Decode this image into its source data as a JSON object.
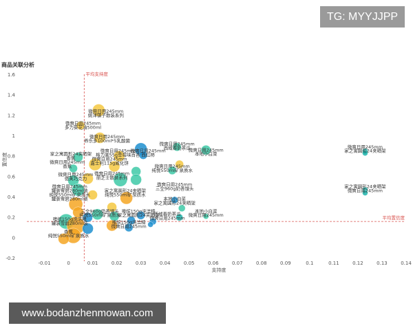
{
  "watermark_top": "TG: MYYJJPP",
  "watermark_bottom": "www.bodanzhenmowan.com",
  "chart_data": {
    "type": "scatter",
    "title": "商品关联分析",
    "xlabel": "支持度",
    "ylabel": "置信度",
    "xlim": [
      -0.015,
      0.14
    ],
    "ylim": [
      -0.23,
      1.63
    ],
    "x_ticks": [
      "-0.01",
      "0",
      "0.01",
      "0.02",
      "0.03",
      "0.04",
      "0.05",
      "0.06",
      "0.07",
      "0.08",
      "0.09",
      "0.1",
      "0.11",
      "0.12",
      "0.13",
      "0.14"
    ],
    "y_ticks": [
      "-0.2",
      "0",
      "0.2",
      "0.4",
      "0.6",
      "0.8",
      "1",
      "1.2",
      "1.4",
      "1.6"
    ],
    "x_tick_values": [
      -0.01,
      0,
      0.01,
      0.02,
      0.03,
      0.04,
      0.05,
      0.06,
      0.07,
      0.08,
      0.09,
      0.1,
      0.11,
      0.12,
      0.13,
      0.14
    ],
    "y_tick_values": [
      -0.2,
      0,
      0.2,
      0.4,
      0.6,
      0.8,
      1,
      1.2,
      1.4,
      1.6
    ],
    "grid": false,
    "reference_lines": {
      "support": {
        "value": 0.0065,
        "label": "平均支持度"
      },
      "confidence": {
        "value": 0.16,
        "label": "平均置信度"
      }
    },
    "colors": {
      "orange": "#f5a623",
      "yellow": "#f5c842",
      "green": "#3ec9a7",
      "teal": "#1fb5ad",
      "blue": "#1f8fcf",
      "red": "#d9534f"
    },
    "points": [
      {
        "x": 0.0125,
        "y": 1.25,
        "r": 9,
        "color": "#f5c842"
      },
      {
        "x": 0.005,
        "y": 1.1,
        "r": 6,
        "color": "#f5c842"
      },
      {
        "x": 0.013,
        "y": 0.98,
        "r": 8,
        "color": "#f5c842"
      },
      {
        "x": 0.03,
        "y": 0.87,
        "r": 9,
        "color": "#1f8fcf"
      },
      {
        "x": 0.021,
        "y": 0.8,
        "r": 8,
        "color": "#f5c842"
      },
      {
        "x": 0.031,
        "y": 0.81,
        "r": 6,
        "color": "#1f8fcf"
      },
      {
        "x": 0.045,
        "y": 0.89,
        "r": 6,
        "color": "#3ec9a7"
      },
      {
        "x": 0.057,
        "y": 0.86,
        "r": 7,
        "color": "#3ec9a7"
      },
      {
        "x": 0.004,
        "y": 0.79,
        "r": 7,
        "color": "#3ec9a7"
      },
      {
        "x": 0.011,
        "y": 0.72,
        "r": 9,
        "color": "#f5c842"
      },
      {
        "x": 0.019,
        "y": 0.7,
        "r": 8,
        "color": "#f5c842"
      },
      {
        "x": 0.002,
        "y": 0.68,
        "r": 6,
        "color": "#3ec9a7"
      },
      {
        "x": 0.028,
        "y": 0.65,
        "r": 7,
        "color": "#3ec9a7"
      },
      {
        "x": 0.046,
        "y": 0.72,
        "r": 6,
        "color": "#f5c842"
      },
      {
        "x": 0.043,
        "y": 0.66,
        "r": 6,
        "color": "#3ec9a7"
      },
      {
        "x": 0.0215,
        "y": 0.57,
        "r": 10,
        "color": "#3ec9a7"
      },
      {
        "x": 0.008,
        "y": 0.58,
        "r": 8,
        "color": "#f5c842"
      },
      {
        "x": 0.002,
        "y": 0.56,
        "r": 8,
        "color": "#3ec9a7"
      },
      {
        "x": 0.028,
        "y": 0.57,
        "r": 8,
        "color": "#3ec9a7"
      },
      {
        "x": 0.004,
        "y": 0.47,
        "r": 9,
        "color": "#3ec9a7"
      },
      {
        "x": 0.01,
        "y": 0.42,
        "r": 7,
        "color": "#f5c842"
      },
      {
        "x": 0.024,
        "y": 0.39,
        "r": 9,
        "color": "#f5a623"
      },
      {
        "x": 0.003,
        "y": 0.33,
        "r": 10,
        "color": "#f5a623"
      },
      {
        "x": 0.018,
        "y": 0.3,
        "r": 7,
        "color": "#f5c842"
      },
      {
        "x": 0.047,
        "y": 0.29,
        "r": 5,
        "color": "#3ec9a7"
      },
      {
        "x": 0.044,
        "y": 0.37,
        "r": 5,
        "color": "#1f8fcf"
      },
      {
        "x": 0.012,
        "y": 0.23,
        "r": 8,
        "color": "#3ec9a7"
      },
      {
        "x": 0.019,
        "y": 0.21,
        "r": 7,
        "color": "#3ec9a7"
      },
      {
        "x": 0.03,
        "y": 0.22,
        "r": 6,
        "color": "#1f8fcf"
      },
      {
        "x": 0.046,
        "y": 0.2,
        "r": 5,
        "color": "#1fb5ad"
      },
      {
        "x": 0.057,
        "y": 0.21,
        "r": 4,
        "color": "#3ec9a7"
      },
      {
        "x": 0.008,
        "y": 0.2,
        "r": 7,
        "color": "#1f8fcf"
      },
      {
        "x": 0.026,
        "y": 0.17,
        "r": 6,
        "color": "#1f8fcf"
      },
      {
        "x": 0.035,
        "y": 0.16,
        "r": 5,
        "color": "#1f8fcf"
      },
      {
        "x": 0.018,
        "y": 0.12,
        "r": 8,
        "color": "#f5a623"
      },
      {
        "x": 0.025,
        "y": 0.1,
        "r": 6,
        "color": "#1f8fcf"
      },
      {
        "x": 0.034,
        "y": 0.13,
        "r": 4,
        "color": "#1f8fcf"
      },
      {
        "x": -0.001,
        "y": 0.16,
        "r": 11,
        "color": "#3ec9a7"
      },
      {
        "x": 0.003,
        "y": 0.12,
        "r": 13,
        "color": "#f5a623"
      },
      {
        "x": 0.008,
        "y": 0.09,
        "r": 8,
        "color": "#1f8fcf"
      },
      {
        "x": 0.002,
        "y": 0.02,
        "r": 11,
        "color": "#f5a623"
      },
      {
        "x": -0.002,
        "y": -0.01,
        "r": 8,
        "color": "#f5a623"
      },
      {
        "x": 0.004,
        "y": 0.25,
        "r": 8,
        "color": "#f5a623"
      },
      {
        "x": 0.123,
        "y": 0.85,
        "r": 4,
        "color": "#1fb5ad"
      },
      {
        "x": 0.123,
        "y": 0.83,
        "r": 4,
        "color": "#1fb5ad"
      },
      {
        "x": 0.123,
        "y": 0.47,
        "r": 4,
        "color": "#1fb5ad"
      },
      {
        "x": 0.123,
        "y": 0.44,
        "r": 4,
        "color": "#1fb5ad"
      }
    ],
    "labels": [
      {
        "x": 0.0155,
        "y": 1.24,
        "text": "微爽日用245mm",
        "anchor": "middle"
      },
      {
        "x": 0.0155,
        "y": 1.2,
        "text": "姚津镇子散装系列",
        "anchor": "middle"
      },
      {
        "x": 0.006,
        "y": 1.12,
        "text": "微爽日用245mm",
        "anchor": "middle"
      },
      {
        "x": 0.006,
        "y": 1.08,
        "text": "多力葵花油500ml",
        "anchor": "middle"
      },
      {
        "x": 0.016,
        "y": 0.99,
        "text": "微爽日用245mm",
        "anchor": "middle"
      },
      {
        "x": 0.016,
        "y": 0.95,
        "text": "养乐多100ml*5乳酸菌",
        "anchor": "middle"
      },
      {
        "x": 0.045,
        "y": 0.92,
        "text": "微爽日用245mm",
        "anchor": "middle"
      },
      {
        "x": 0.045,
        "y": 0.88,
        "text": "西域春奶茶瓜",
        "anchor": "middle"
      },
      {
        "x": 0.0205,
        "y": 0.85,
        "text": "微爽日用245mm",
        "anchor": "middle"
      },
      {
        "x": 0.0205,
        "y": 0.81,
        "text": "格力美55g草莓味百香",
        "anchor": "middle"
      },
      {
        "x": 0.033,
        "y": 0.85,
        "text": "微爽日用245mm",
        "anchor": "middle"
      },
      {
        "x": 0.033,
        "y": 0.81,
        "text": "西红柿",
        "anchor": "middle"
      },
      {
        "x": 0.057,
        "y": 0.86,
        "text": "微爽日用245mm",
        "anchor": "middle"
      },
      {
        "x": 0.057,
        "y": 0.82,
        "text": "本地小白菜",
        "anchor": "middle"
      },
      {
        "x": 0.001,
        "y": 0.82,
        "text": "家之寓圆形24夹晒架",
        "anchor": "middle"
      },
      {
        "x": 0.001,
        "y": 0.78,
        "text": "香蕉",
        "anchor": "middle"
      },
      {
        "x": -0.0005,
        "y": 0.74,
        "text": "微爽日用245mm",
        "anchor": "middle"
      },
      {
        "x": -0.0005,
        "y": 0.7,
        "text": "香蕉",
        "anchor": "middle"
      },
      {
        "x": 0.017,
        "y": 0.77,
        "text": "微爽日用245mm",
        "anchor": "middle"
      },
      {
        "x": 0.017,
        "y": 0.73,
        "text": "嘉士利115g威化饼",
        "anchor": "middle"
      },
      {
        "x": 0.043,
        "y": 0.7,
        "text": "微爽日用245mm",
        "anchor": "middle"
      },
      {
        "x": 0.043,
        "y": 0.66,
        "text": "纯悦550ml矿泉质水",
        "anchor": "middle"
      },
      {
        "x": 0.018,
        "y": 0.63,
        "text": "微爽日用245mm",
        "anchor": "middle"
      },
      {
        "x": 0.018,
        "y": 0.59,
        "text": "丽芝士散装系列",
        "anchor": "middle"
      },
      {
        "x": 0.003,
        "y": 0.62,
        "text": "微爽日用245mm",
        "anchor": "middle"
      },
      {
        "x": 0.003,
        "y": 0.58,
        "text": "德芙巧克力",
        "anchor": "middle"
      },
      {
        "x": 0.044,
        "y": 0.52,
        "text": "微爽日用245mm",
        "anchor": "middle"
      },
      {
        "x": 0.044,
        "y": 0.48,
        "text": "三全960g奶香馒头",
        "anchor": "middle"
      },
      {
        "x": 0.0005,
        "y": 0.5,
        "text": "微爽日用245mm",
        "anchor": "middle"
      },
      {
        "x": 0.0005,
        "y": 0.46,
        "text": "罐装雪碧280ml装",
        "anchor": "middle"
      },
      {
        "x": 0.0235,
        "y": 0.46,
        "text": "家之寓圆形24夹晒架",
        "anchor": "middle"
      },
      {
        "x": 0.0235,
        "y": 0.42,
        "text": "纯悦550ml矿泉质水",
        "anchor": "middle"
      },
      {
        "x": 0.0005,
        "y": 0.42,
        "text": "纯悦550ml矿泉质水",
        "anchor": "middle"
      },
      {
        "x": 0.0005,
        "y": 0.38,
        "text": "罐装雪碧280ml装",
        "anchor": "middle"
      },
      {
        "x": 0.044,
        "y": 0.38,
        "text": "本地小白菜",
        "anchor": "middle"
      },
      {
        "x": 0.044,
        "y": 0.34,
        "text": "家之寓圆形24夹晒架",
        "anchor": "middle"
      },
      {
        "x": 0.013,
        "y": 0.26,
        "text": "三全960g奶香馒头",
        "anchor": "middle"
      },
      {
        "x": 0.013,
        "y": 0.22,
        "text": "纯悦550ml矿泉质水",
        "anchor": "middle"
      },
      {
        "x": 0.029,
        "y": 0.26,
        "text": "噢缤150g洗洁精",
        "anchor": "middle"
      },
      {
        "x": 0.029,
        "y": 0.22,
        "text": "家之寓圆形24夹晒架",
        "anchor": "middle"
      },
      {
        "x": 0.057,
        "y": 0.26,
        "text": "本地小白菜",
        "anchor": "middle"
      },
      {
        "x": 0.057,
        "y": 0.22,
        "text": "微爽日用245mm",
        "anchor": "middle"
      },
      {
        "x": 0.041,
        "y": 0.23,
        "text": "西域春奶茶瓜",
        "anchor": "middle"
      },
      {
        "x": 0.041,
        "y": 0.19,
        "text": "微爽日用245mm",
        "anchor": "middle"
      },
      {
        "x": 0.0005,
        "y": 0.18,
        "text": "噢缤150g洗洁精",
        "anchor": "middle"
      },
      {
        "x": 0.0005,
        "y": 0.14,
        "text": "罐装雪碧280ml装",
        "anchor": "middle"
      },
      {
        "x": 0.025,
        "y": 0.15,
        "text": "噢缤150g洗洁精",
        "anchor": "middle"
      },
      {
        "x": 0.025,
        "y": 0.11,
        "text": "微爽日用245mm",
        "anchor": "middle"
      },
      {
        "x": 0.0,
        "y": 0.06,
        "text": "香蕉",
        "anchor": "middle"
      },
      {
        "x": 0.0,
        "y": 0.02,
        "text": "纯悦550ml矿泉质水",
        "anchor": "middle"
      },
      {
        "x": 0.123,
        "y": 0.89,
        "text": "微爽日用245mm",
        "anchor": "middle"
      },
      {
        "x": 0.123,
        "y": 0.85,
        "text": "家之寓圆形24夹晒架",
        "anchor": "middle"
      },
      {
        "x": 0.123,
        "y": 0.5,
        "text": "家之寓圆形24夹晒架",
        "anchor": "middle"
      },
      {
        "x": 0.123,
        "y": 0.46,
        "text": "微爽日用245mm",
        "anchor": "middle"
      }
    ]
  }
}
